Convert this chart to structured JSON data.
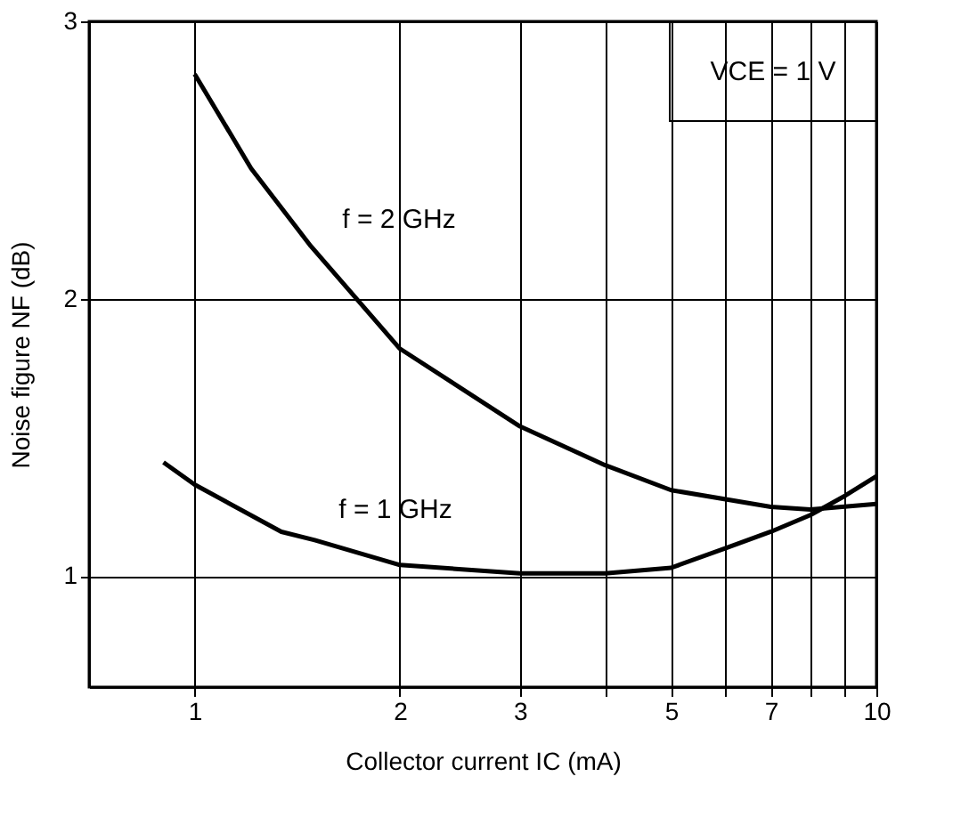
{
  "chart_data": {
    "type": "line",
    "xlabel": "Collector current IC (mA)",
    "ylabel": "Noise figure NF (dB)",
    "log": "x",
    "xlim": [
      0.7,
      10
    ],
    "ylim": [
      0.6,
      3
    ],
    "xticks": [
      1,
      2,
      3,
      {
        "value": 4,
        "label": null
      },
      5,
      {
        "value": 6,
        "label": null
      },
      7,
      {
        "value": 8,
        "label": null
      },
      {
        "value": 9,
        "label": null
      },
      10
    ],
    "yticks": [
      1,
      2,
      3
    ],
    "grid": true,
    "legend": false,
    "marker": "none",
    "line_style": "solid",
    "series": [
      {
        "name": "f = 2 GHz",
        "color": "#000000",
        "x": [
          1,
          1.21,
          1.48,
          2,
          3,
          4,
          5,
          7,
          8,
          10
        ],
        "values": [
          2.81,
          2.47,
          2.19,
          1.82,
          1.54,
          1.4,
          1.31,
          1.25,
          1.24,
          1.26
        ]
      },
      {
        "name": "f = 1 GHz",
        "color": "#000000",
        "x": [
          0.9,
          1,
          1.34,
          1.5,
          2,
          3,
          4,
          5,
          6,
          7,
          8,
          9,
          10
        ],
        "values": [
          1.41,
          1.33,
          1.16,
          1.13,
          1.04,
          1.01,
          1.01,
          1.03,
          1.1,
          1.16,
          1.22,
          1.29,
          1.36
        ]
      }
    ],
    "annotations": [
      "VCE = 1 V"
    ]
  }
}
